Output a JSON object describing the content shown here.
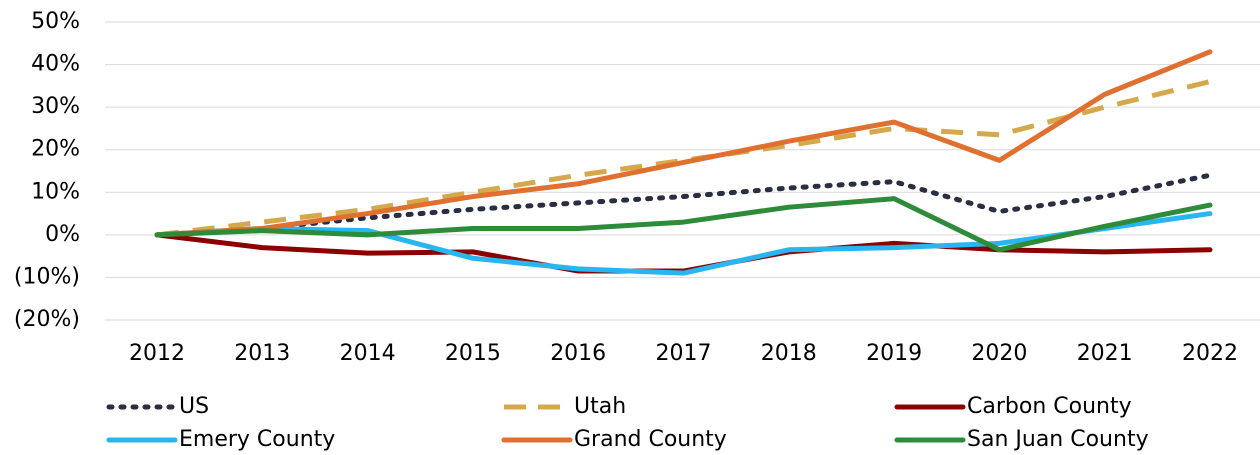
{
  "chart_data": {
    "type": "line",
    "x": [
      "2012",
      "2013",
      "2014",
      "2015",
      "2016",
      "2017",
      "2018",
      "2019",
      "2020",
      "2021",
      "2022"
    ],
    "series": [
      {
        "name": "US",
        "color": "#2b2d42",
        "dash": "dotted",
        "values": [
          0,
          1.5,
          4,
          6,
          7.5,
          9,
          11,
          12.5,
          5.5,
          9,
          14
        ]
      },
      {
        "name": "Utah",
        "color": "#d4a84b",
        "dash": "dashed",
        "values": [
          0,
          3,
          6,
          10,
          14,
          17.5,
          21,
          25,
          23.5,
          30,
          36
        ]
      },
      {
        "name": "Carbon County",
        "color": "#8b0000",
        "dash": "solid",
        "values": [
          0,
          -3,
          -4.3,
          -4,
          -8.5,
          -8.5,
          -4,
          -2,
          -3.5,
          -4,
          -3.5
        ]
      },
      {
        "name": "Emery County",
        "color": "#29b6f0",
        "dash": "solid",
        "values": [
          0,
          1.5,
          1,
          -5.5,
          -8,
          -9,
          -3.5,
          -3,
          -2,
          1.5,
          5
        ]
      },
      {
        "name": "Grand County",
        "color": "#e07030",
        "dash": "solid",
        "values": [
          0,
          1.5,
          5,
          9,
          12,
          17,
          22,
          26.5,
          17.5,
          33,
          43
        ]
      },
      {
        "name": "San Juan County",
        "color": "#2e8b3a",
        "dash": "solid",
        "values": [
          0,
          1,
          0,
          1.5,
          1.5,
          3,
          6.5,
          8.5,
          -3.5,
          2,
          7
        ]
      }
    ],
    "ylim": [
      -20,
      50
    ],
    "yticks": [
      {
        "value": 50,
        "label": "50%"
      },
      {
        "value": 40,
        "label": "40%"
      },
      {
        "value": 30,
        "label": "30%"
      },
      {
        "value": 20,
        "label": "20%"
      },
      {
        "value": 10,
        "label": "10%"
      },
      {
        "value": 0,
        "label": "0%"
      },
      {
        "value": -10,
        "label": "(10%)"
      },
      {
        "value": -20,
        "label": "(20%)"
      }
    ],
    "negative_tick_color": "#e00000",
    "grid": true,
    "legend": "bottom"
  }
}
